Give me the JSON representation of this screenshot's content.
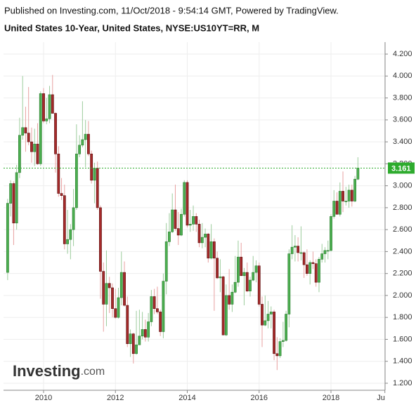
{
  "header": {
    "published": "Published on Investing.com, 11/Oct/2018 - 9:54:14 GMT, Powered by TradingView."
  },
  "chart_data": {
    "type": "candlestick",
    "title": "United States 10-Year, United States, NYSE:US10YT=RR, M",
    "watermark": [
      "Investing",
      ".com"
    ],
    "up_color": "#4caf50",
    "down_color": "#a52a2a",
    "up_wick": "#9ccc9c",
    "down_wick": "#e8a0a0",
    "last_line_color": "#2eab2e",
    "grid": true,
    "xlim": [
      2008.885,
      2019.506
    ],
    "xticks": [
      2010,
      2012,
      2014,
      2016,
      2018,
      {
        "value": 2019.5,
        "label": "Ju"
      }
    ],
    "ylim": [
      1.136,
      4.309
    ],
    "yticks": [
      {
        "value": 1.2,
        "label": "1.200"
      },
      {
        "value": 1.4,
        "label": "1.400"
      },
      {
        "value": 1.6,
        "label": "1.600"
      },
      {
        "value": 1.8,
        "label": "1.800"
      },
      {
        "value": 2.0,
        "label": "2.000"
      },
      {
        "value": 2.2,
        "label": "2.200"
      },
      {
        "value": 2.4,
        "label": "2.400"
      },
      {
        "value": 2.6,
        "label": "2.600"
      },
      {
        "value": 2.8,
        "label": "2.800"
      },
      {
        "value": 3.0,
        "label": "3.000"
      },
      {
        "value": 3.2,
        "label": "3.200"
      },
      {
        "value": 3.4,
        "label": "3.400"
      },
      {
        "value": 3.6,
        "label": "3.600"
      },
      {
        "value": 3.8,
        "label": "3.800"
      },
      {
        "value": 4.0,
        "label": "4.000"
      },
      {
        "value": 4.2,
        "label": "4.200"
      }
    ],
    "x": [
      2009.0,
      2009.083,
      2009.167,
      2009.25,
      2009.333,
      2009.417,
      2009.5,
      2009.583,
      2009.667,
      2009.75,
      2009.833,
      2009.917,
      2010.0,
      2010.083,
      2010.167,
      2010.25,
      2010.333,
      2010.417,
      2010.5,
      2010.583,
      2010.667,
      2010.75,
      2010.833,
      2010.917,
      2011.0,
      2011.083,
      2011.167,
      2011.25,
      2011.333,
      2011.417,
      2011.5,
      2011.583,
      2011.667,
      2011.75,
      2011.833,
      2011.917,
      2012.0,
      2012.083,
      2012.167,
      2012.25,
      2012.333,
      2012.417,
      2012.5,
      2012.583,
      2012.667,
      2012.75,
      2012.833,
      2012.917,
      2013.0,
      2013.083,
      2013.167,
      2013.25,
      2013.333,
      2013.417,
      2013.5,
      2013.583,
      2013.667,
      2013.75,
      2013.833,
      2013.917,
      2014.0,
      2014.083,
      2014.167,
      2014.25,
      2014.333,
      2014.417,
      2014.5,
      2014.583,
      2014.667,
      2014.75,
      2014.833,
      2014.917,
      2015.0,
      2015.083,
      2015.167,
      2015.25,
      2015.333,
      2015.417,
      2015.5,
      2015.583,
      2015.667,
      2015.75,
      2015.833,
      2015.917,
      2016.0,
      2016.083,
      2016.167,
      2016.25,
      2016.333,
      2016.417,
      2016.5,
      2016.583,
      2016.667,
      2016.75,
      2016.833,
      2016.917,
      2017.0,
      2017.083,
      2017.167,
      2017.25,
      2017.333,
      2017.417,
      2017.5,
      2017.583,
      2017.667,
      2017.75,
      2017.833,
      2017.917,
      2018.0,
      2018.083,
      2018.167,
      2018.25,
      2018.333,
      2018.417,
      2018.5,
      2018.583,
      2018.667,
      2018.75
    ],
    "ohlc": [
      [
        2.21,
        2.88,
        2.14,
        2.84
      ],
      [
        2.84,
        3.05,
        2.72,
        3.02
      ],
      [
        3.02,
        3.04,
        2.46,
        2.66
      ],
      [
        2.66,
        3.19,
        2.6,
        3.12
      ],
      [
        3.12,
        3.62,
        3.07,
        3.46
      ],
      [
        3.46,
        4.0,
        3.42,
        3.53
      ],
      [
        3.53,
        3.72,
        3.31,
        3.48
      ],
      [
        3.48,
        3.9,
        3.37,
        3.4
      ],
      [
        3.4,
        3.53,
        3.21,
        3.31
      ],
      [
        3.31,
        3.52,
        3.18,
        3.38
      ],
      [
        3.38,
        3.57,
        3.19,
        3.2
      ],
      [
        3.2,
        3.86,
        3.18,
        3.84
      ],
      [
        3.84,
        3.89,
        3.57,
        3.59
      ],
      [
        3.59,
        3.8,
        3.56,
        3.61
      ],
      [
        3.61,
        3.91,
        3.57,
        3.83
      ],
      [
        3.83,
        4.01,
        3.66,
        3.66
      ],
      [
        3.66,
        3.67,
        3.12,
        3.29
      ],
      [
        3.29,
        3.36,
        2.9,
        2.93
      ],
      [
        2.93,
        3.07,
        2.87,
        2.91
      ],
      [
        2.91,
        3.01,
        2.42,
        2.47
      ],
      [
        2.47,
        2.78,
        2.38,
        2.51
      ],
      [
        2.51,
        2.65,
        2.33,
        2.6
      ],
      [
        2.6,
        2.97,
        2.45,
        2.8
      ],
      [
        2.8,
        3.56,
        2.78,
        3.29
      ],
      [
        3.29,
        3.46,
        3.26,
        3.37
      ],
      [
        3.37,
        3.77,
        3.35,
        3.42
      ],
      [
        3.42,
        3.6,
        3.17,
        3.47
      ],
      [
        3.47,
        3.59,
        3.27,
        3.29
      ],
      [
        3.29,
        3.32,
        3.02,
        3.05
      ],
      [
        3.05,
        3.21,
        2.84,
        3.16
      ],
      [
        3.16,
        3.22,
        2.78,
        2.8
      ],
      [
        2.8,
        2.82,
        1.97,
        2.22
      ],
      [
        2.22,
        2.3,
        1.67,
        1.92
      ],
      [
        1.92,
        2.41,
        1.72,
        2.11
      ],
      [
        2.11,
        2.17,
        1.84,
        2.07
      ],
      [
        2.07,
        2.11,
        1.8,
        1.88
      ],
      [
        1.88,
        2.06,
        1.79,
        1.8
      ],
      [
        1.8,
        2.07,
        1.79,
        1.98
      ],
      [
        1.98,
        2.4,
        1.91,
        2.21
      ],
      [
        2.21,
        2.31,
        1.9,
        1.91
      ],
      [
        1.91,
        1.99,
        1.53,
        1.56
      ],
      [
        1.56,
        1.69,
        1.44,
        1.65
      ],
      [
        1.65,
        1.66,
        1.38,
        1.47
      ],
      [
        1.47,
        1.86,
        1.46,
        1.55
      ],
      [
        1.55,
        1.87,
        1.55,
        1.63
      ],
      [
        1.63,
        1.85,
        1.6,
        1.69
      ],
      [
        1.69,
        1.78,
        1.58,
        1.62
      ],
      [
        1.62,
        1.84,
        1.58,
        1.76
      ],
      [
        1.76,
        2.05,
        1.72,
        1.99
      ],
      [
        1.99,
        2.06,
        1.83,
        1.88
      ],
      [
        1.88,
        2.08,
        1.83,
        1.85
      ],
      [
        1.85,
        1.87,
        1.63,
        1.67
      ],
      [
        1.67,
        2.2,
        1.61,
        2.13
      ],
      [
        2.13,
        2.66,
        2.01,
        2.49
      ],
      [
        2.49,
        2.75,
        2.45,
        2.58
      ],
      [
        2.58,
        2.93,
        2.57,
        2.78
      ],
      [
        2.78,
        3.01,
        2.59,
        2.61
      ],
      [
        2.61,
        2.76,
        2.46,
        2.55
      ],
      [
        2.55,
        2.79,
        2.54,
        2.74
      ],
      [
        2.74,
        3.05,
        2.72,
        3.03
      ],
      [
        3.03,
        3.05,
        2.62,
        2.64
      ],
      [
        2.64,
        2.78,
        2.58,
        2.65
      ],
      [
        2.65,
        2.82,
        2.59,
        2.72
      ],
      [
        2.72,
        2.75,
        2.58,
        2.65
      ],
      [
        2.65,
        2.69,
        2.44,
        2.48
      ],
      [
        2.48,
        2.66,
        2.43,
        2.53
      ],
      [
        2.53,
        2.61,
        2.44,
        2.56
      ],
      [
        2.56,
        2.57,
        2.3,
        2.34
      ],
      [
        2.34,
        2.65,
        2.33,
        2.49
      ],
      [
        2.49,
        2.52,
        1.86,
        2.34
      ],
      [
        2.34,
        2.4,
        2.15,
        2.16
      ],
      [
        2.16,
        2.33,
        2.03,
        2.17
      ],
      [
        2.17,
        2.18,
        1.64,
        1.64
      ],
      [
        1.64,
        2.1,
        1.63,
        2.0
      ],
      [
        2.0,
        2.24,
        1.87,
        1.92
      ],
      [
        1.92,
        2.1,
        1.85,
        2.03
      ],
      [
        2.03,
        2.36,
        2.02,
        2.12
      ],
      [
        2.12,
        2.5,
        2.08,
        2.35
      ],
      [
        2.35,
        2.48,
        2.18,
        2.18
      ],
      [
        2.18,
        2.25,
        1.91,
        2.21
      ],
      [
        2.21,
        2.3,
        2.03,
        2.04
      ],
      [
        2.04,
        2.17,
        1.99,
        2.14
      ],
      [
        2.14,
        2.36,
        2.13,
        2.21
      ],
      [
        2.21,
        2.32,
        2.12,
        2.27
      ],
      [
        2.27,
        2.3,
        1.9,
        1.92
      ],
      [
        1.92,
        1.99,
        1.53,
        1.73
      ],
      [
        1.73,
        2.0,
        1.72,
        1.77
      ],
      [
        1.77,
        1.95,
        1.7,
        1.83
      ],
      [
        1.83,
        1.9,
        1.7,
        1.85
      ],
      [
        1.85,
        1.87,
        1.41,
        1.47
      ],
      [
        1.47,
        1.62,
        1.32,
        1.45
      ],
      [
        1.45,
        1.61,
        1.43,
        1.58
      ],
      [
        1.58,
        1.76,
        1.53,
        1.59
      ],
      [
        1.59,
        1.86,
        1.58,
        1.83
      ],
      [
        1.83,
        2.42,
        1.71,
        2.38
      ],
      [
        2.38,
        2.64,
        2.33,
        2.44
      ],
      [
        2.44,
        2.55,
        2.31,
        2.45
      ],
      [
        2.45,
        2.53,
        2.31,
        2.39
      ],
      [
        2.39,
        2.63,
        2.32,
        2.39
      ],
      [
        2.39,
        2.4,
        2.16,
        2.28
      ],
      [
        2.28,
        2.42,
        2.18,
        2.2
      ],
      [
        2.2,
        2.32,
        2.1,
        2.3
      ],
      [
        2.3,
        2.4,
        2.24,
        2.29
      ],
      [
        2.29,
        2.33,
        2.08,
        2.12
      ],
      [
        2.12,
        2.35,
        2.03,
        2.33
      ],
      [
        2.33,
        2.47,
        2.3,
        2.38
      ],
      [
        2.38,
        2.44,
        2.3,
        2.41
      ],
      [
        2.41,
        2.5,
        2.33,
        2.41
      ],
      [
        2.41,
        2.74,
        2.4,
        2.72
      ],
      [
        2.72,
        2.96,
        2.7,
        2.86
      ],
      [
        2.86,
        2.94,
        2.74,
        2.74
      ],
      [
        2.74,
        3.03,
        2.72,
        2.95
      ],
      [
        2.95,
        3.13,
        2.76,
        2.86
      ],
      [
        2.86,
        2.99,
        2.82,
        2.86
      ],
      [
        2.86,
        3.01,
        2.8,
        2.96
      ],
      [
        2.96,
        3.01,
        2.81,
        2.86
      ],
      [
        2.86,
        3.09,
        2.85,
        3.06
      ],
      [
        3.06,
        3.26,
        3.05,
        3.161
      ]
    ]
  }
}
